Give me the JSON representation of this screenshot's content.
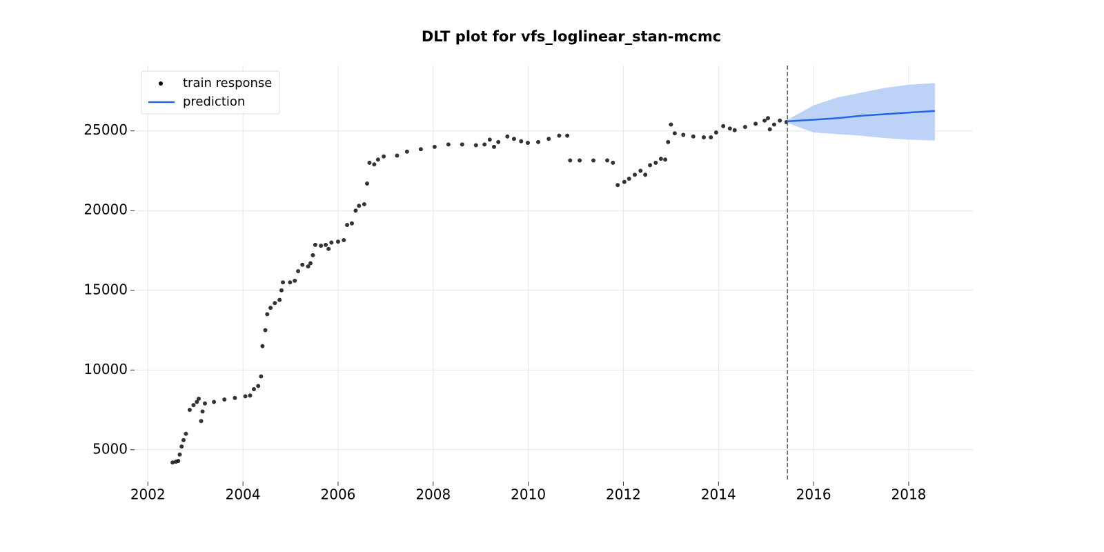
{
  "chart_data": {
    "type": "scatter+line",
    "title": "DLT plot for vfs_loglinear_stan-mcmc",
    "xlim": [
      2001.72,
      2019.35
    ],
    "ylim": [
      3000,
      29100
    ],
    "xticks": [
      2002,
      2004,
      2006,
      2008,
      2010,
      2012,
      2014,
      2016,
      2018
    ],
    "yticks": [
      5000,
      10000,
      15000,
      20000,
      25000
    ],
    "grid": true,
    "legend": "upper-left",
    "cutoff": 2015.45,
    "series": [
      {
        "name": "train response",
        "type": "scatter",
        "color": "#000000",
        "x": [
          2002.52,
          2002.59,
          2002.64,
          2002.67,
          2002.71,
          2002.75,
          2002.8,
          2002.88,
          2002.96,
          2003.03,
          2003.07,
          2003.12,
          2003.15,
          2003.2,
          2003.39,
          2003.61,
          2003.83,
          2004.05,
          2004.15,
          2004.23,
          2004.32,
          2004.38,
          2004.41,
          2004.47,
          2004.51,
          2004.58,
          2004.67,
          2004.77,
          2004.81,
          2004.84,
          2004.99,
          2005.09,
          2005.16,
          2005.25,
          2005.37,
          2005.42,
          2005.47,
          2005.52,
          2005.64,
          2005.74,
          2005.8,
          2005.86,
          2006.0,
          2006.12,
          2006.19,
          2006.29,
          2006.37,
          2006.44,
          2006.55,
          2006.61,
          2006.66,
          2006.76,
          2006.84,
          2006.96,
          2007.24,
          2007.45,
          2007.74,
          2008.03,
          2008.32,
          2008.61,
          2008.9,
          2009.08,
          2009.19,
          2009.28,
          2009.37,
          2009.56,
          2009.7,
          2009.85,
          2009.99,
          2010.21,
          2010.43,
          2010.65,
          2010.82,
          2010.88,
          2011.08,
          2011.37,
          2011.66,
          2011.78,
          2011.88,
          2012.02,
          2012.12,
          2012.24,
          2012.36,
          2012.46,
          2012.56,
          2012.68,
          2012.79,
          2012.88,
          2012.94,
          2013.0,
          2013.08,
          2013.26,
          2013.47,
          2013.69,
          2013.84,
          2013.95,
          2014.1,
          2014.24,
          2014.34,
          2014.56,
          2014.78,
          2014.97,
          2015.04,
          2015.08,
          2015.17,
          2015.29,
          2015.43
        ],
        "values": [
          4200,
          4250,
          4300,
          4700,
          5200,
          5600,
          6000,
          7500,
          7800,
          8000,
          8200,
          6800,
          7400,
          7900,
          8000,
          8150,
          8250,
          8350,
          8400,
          8800,
          9000,
          9600,
          11500,
          12500,
          13500,
          13900,
          14200,
          14400,
          15000,
          15500,
          15500,
          15600,
          16200,
          16600,
          16500,
          16700,
          17200,
          17850,
          17800,
          17850,
          17600,
          18000,
          18050,
          18150,
          19100,
          19200,
          20000,
          20300,
          20400,
          21700,
          23000,
          22900,
          23200,
          23400,
          23450,
          23700,
          23850,
          24000,
          24150,
          24150,
          24100,
          24150,
          24450,
          24000,
          24300,
          24650,
          24500,
          24350,
          24250,
          24300,
          24500,
          24700,
          24700,
          23150,
          23150,
          23150,
          23150,
          23000,
          21600,
          21800,
          22000,
          22250,
          22500,
          22250,
          22850,
          23000,
          23250,
          23200,
          24300,
          25400,
          24850,
          24750,
          24650,
          24600,
          24600,
          24900,
          25300,
          25150,
          25050,
          25250,
          25450,
          25650,
          25800,
          25100,
          25400,
          25650,
          25550
        ]
      },
      {
        "name": "prediction",
        "type": "line",
        "color": "#2266e3",
        "band_color": "#bcd2f7",
        "x": [
          2015.45,
          2016,
          2016.5,
          2017,
          2017.5,
          2018,
          2018.55
        ],
        "values": [
          25600,
          25700,
          25800,
          25950,
          26050,
          26150,
          26250
        ],
        "lower": [
          25500,
          24900,
          24800,
          24700,
          24550,
          24450,
          24400
        ],
        "upper": [
          25700,
          26600,
          27100,
          27400,
          27700,
          27900,
          28000
        ]
      }
    ]
  }
}
